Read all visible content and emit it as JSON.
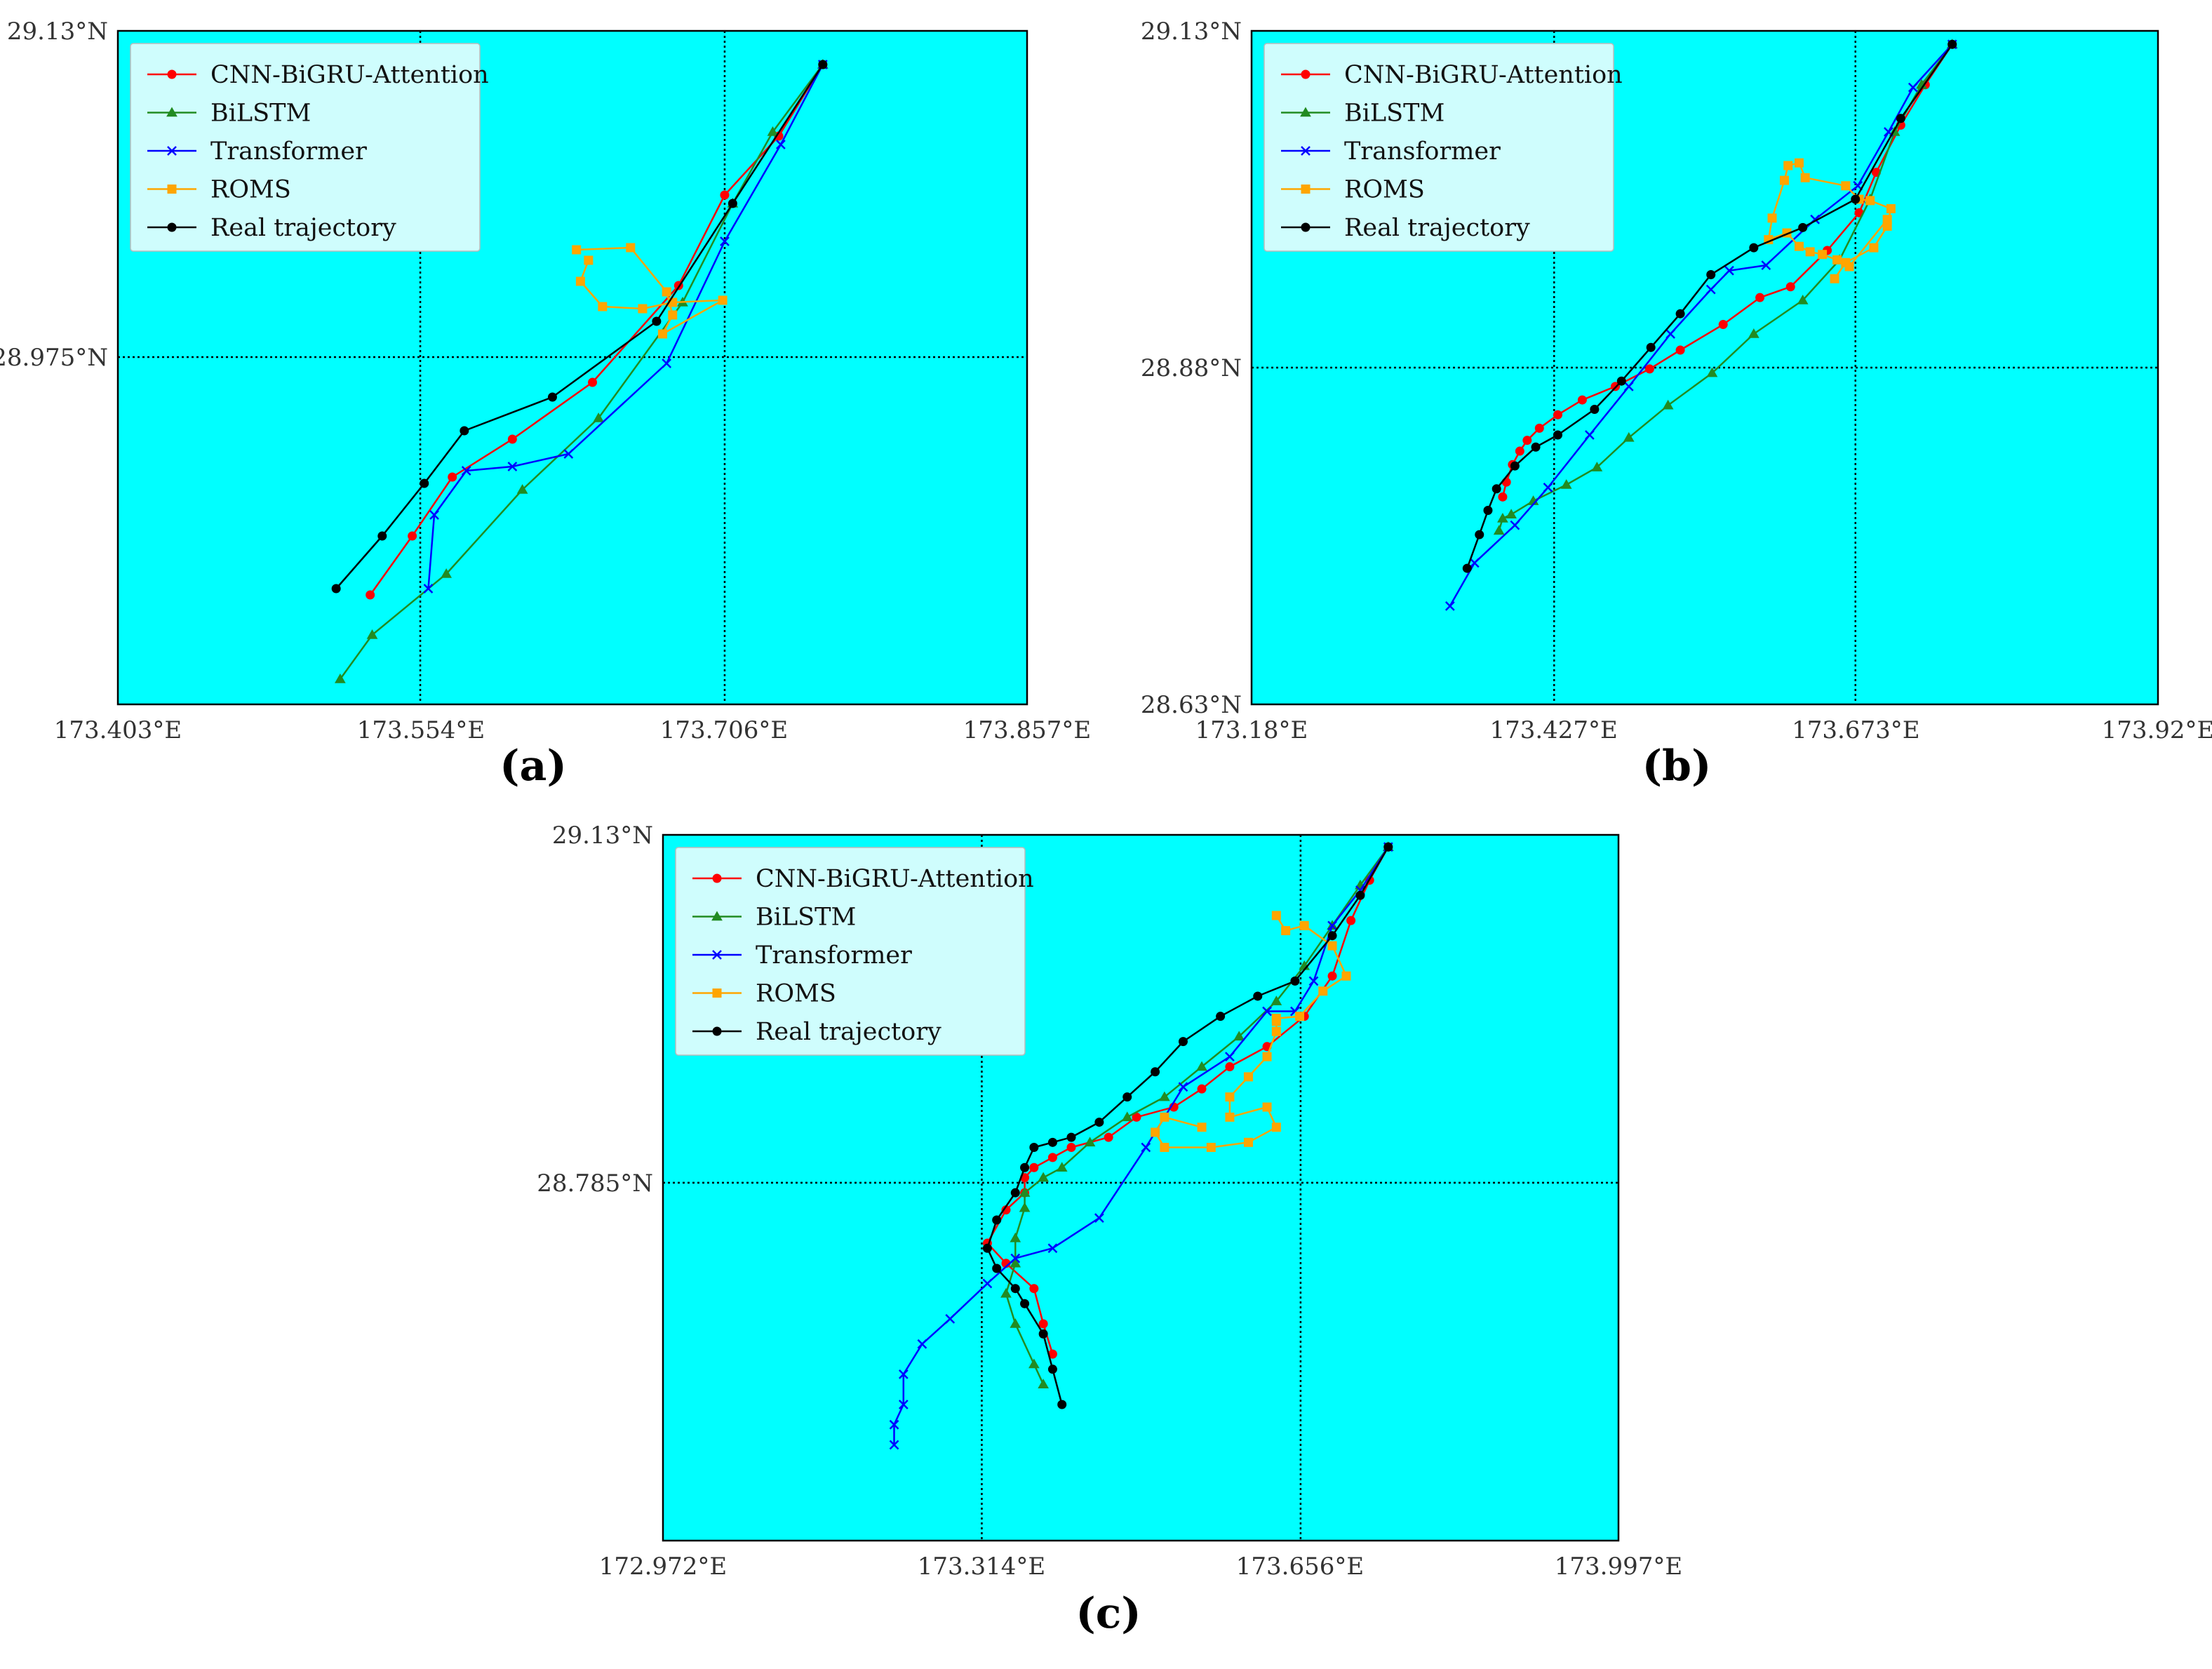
{
  "colors": {
    "CNN-BiGRU-Attention": "#ff0000",
    "BiLSTM": "#228b22",
    "Transformer": "#0000ff",
    "ROMS": "#ffa500",
    "Real trajectory": "#000000",
    "plot_bg": "#00ffff",
    "legend_bg": "#cffdfd"
  },
  "chart_data": [
    {
      "type": "line",
      "panel_label": "(a)",
      "legend": [
        "CNN-BiGRU-Attention",
        "BiLSTM",
        "Transformer",
        "ROMS",
        "Real trajectory"
      ],
      "legend_position": "top-left",
      "xlim": [
        173.403,
        173.857
      ],
      "ylim": [
        28.81,
        29.13
      ],
      "xticks": [
        "173.403°E",
        "173.554°E",
        "173.706°E",
        "173.857°E"
      ],
      "yticks": [
        "29.13°N",
        "28.975°N"
      ],
      "grid_x": [
        173.554,
        173.706
      ],
      "grid_y": [
        28.975
      ],
      "series": [
        {
          "name": "CNN-BiGRU-Attention",
          "marker": "circle",
          "x": [
            173.755,
            173.733,
            173.706,
            173.683,
            173.64,
            173.6,
            173.57,
            173.55,
            173.529
          ],
          "y": [
            29.114,
            29.08,
            29.052,
            29.009,
            28.963,
            28.936,
            28.918,
            28.89,
            28.862
          ]
        },
        {
          "name": "BiLSTM",
          "marker": "triangle",
          "x": [
            173.755,
            173.73,
            173.71,
            173.685,
            173.643,
            173.605,
            173.567,
            173.53,
            173.514
          ],
          "y": [
            29.114,
            29.082,
            29.048,
            29.001,
            28.946,
            28.912,
            28.872,
            28.843,
            28.822
          ]
        },
        {
          "name": "Transformer",
          "marker": "x",
          "x": [
            173.755,
            173.734,
            173.706,
            173.677,
            173.628,
            173.6,
            173.577,
            173.561,
            173.558
          ],
          "y": [
            29.114,
            29.076,
            29.03,
            28.972,
            28.929,
            28.923,
            28.921,
            28.9,
            28.865
          ]
        },
        {
          "name": "ROMS",
          "marker": "square",
          "x": [
            173.632,
            173.659,
            173.677,
            173.68,
            173.675,
            173.705,
            173.68,
            173.665,
            173.645,
            173.634,
            173.638
          ],
          "y": [
            29.026,
            29.027,
            29.006,
            28.995,
            28.986,
            29.002,
            29.001,
            28.998,
            28.999,
            29.011,
            29.021
          ]
        },
        {
          "name": "Real trajectory",
          "marker": "circle",
          "x": [
            173.755,
            173.71,
            173.672,
            173.62,
            173.576,
            173.556,
            173.535,
            173.512
          ],
          "y": [
            29.114,
            29.048,
            28.992,
            28.956,
            28.94,
            28.915,
            28.89,
            28.865
          ]
        }
      ]
    },
    {
      "type": "line",
      "panel_label": "(b)",
      "legend": [
        "CNN-BiGRU-Attention",
        "BiLSTM",
        "Transformer",
        "ROMS",
        "Real trajectory"
      ],
      "legend_position": "top-left",
      "xlim": [
        173.18,
        173.92
      ],
      "ylim": [
        28.63,
        29.13
      ],
      "xticks": [
        "173.18°E",
        "173.427°E",
        "173.673°E",
        "173.92°E"
      ],
      "yticks": [
        "29.13°N",
        "28.88°N",
        "28.63°N"
      ],
      "grid_x": [
        173.427,
        173.673
      ],
      "grid_y": [
        28.88
      ],
      "series": [
        {
          "name": "CNN-BiGRU-Attention",
          "marker": "circle",
          "x": [
            173.752,
            173.73,
            173.71,
            173.69,
            173.676,
            173.65,
            173.62,
            173.595,
            173.565,
            173.53,
            173.505,
            173.477,
            173.45,
            173.43,
            173.415,
            173.405,
            173.399,
            173.393,
            173.388,
            173.385
          ],
          "y": [
            29.12,
            29.09,
            29.06,
            29.025,
            28.995,
            28.967,
            28.94,
            28.932,
            28.912,
            28.893,
            28.879,
            28.866,
            28.856,
            28.845,
            28.835,
            28.826,
            28.818,
            28.808,
            28.795,
            28.784
          ]
        },
        {
          "name": "BiLSTM",
          "marker": "triangle",
          "x": [
            173.752,
            173.727,
            173.705,
            173.685,
            173.66,
            173.63,
            173.59,
            173.556,
            173.52,
            173.488,
            173.462,
            173.437,
            173.41,
            173.392,
            173.385,
            173.382
          ],
          "y": [
            29.12,
            29.09,
            29.055,
            29.005,
            28.96,
            28.93,
            28.905,
            28.876,
            28.852,
            28.828,
            28.806,
            28.793,
            28.781,
            28.771,
            28.768,
            28.759
          ]
        },
        {
          "name": "Transformer",
          "marker": "x",
          "x": [
            173.752,
            173.72,
            173.7,
            173.675,
            173.64,
            173.6,
            173.57,
            173.555,
            173.522,
            173.488,
            173.456,
            173.422,
            173.395,
            173.362,
            173.342
          ],
          "y": [
            29.12,
            29.088,
            29.055,
            29.015,
            28.99,
            28.956,
            28.952,
            28.938,
            28.905,
            28.866,
            28.83,
            28.791,
            28.763,
            28.735,
            28.703
          ]
        },
        {
          "name": "ROMS",
          "marker": "square",
          "x": [
            173.656,
            173.665,
            173.688,
            173.699,
            173.702,
            173.685,
            173.676,
            173.665,
            173.632,
            173.627,
            173.618,
            173.615,
            173.605,
            173.602,
            173.617,
            173.627,
            173.636,
            173.646,
            173.658,
            173.668,
            173.699
          ],
          "y": [
            28.946,
            28.958,
            28.969,
            28.985,
            28.998,
            29.004,
            29.005,
            29.015,
            29.021,
            29.032,
            29.03,
            29.019,
            28.991,
            28.975,
            28.98,
            28.97,
            28.966,
            28.964,
            28.96,
            28.955,
            28.99
          ]
        },
        {
          "name": "Real trajectory",
          "marker": "circle",
          "x": [
            173.752,
            173.71,
            173.673,
            173.63,
            173.59,
            173.555,
            173.53,
            173.506,
            173.482,
            173.46,
            173.43,
            173.412,
            173.395,
            173.38,
            173.373,
            173.366,
            173.356
          ],
          "y": [
            29.12,
            29.065,
            29.005,
            28.984,
            28.969,
            28.949,
            28.92,
            28.895,
            28.87,
            28.849,
            28.83,
            28.821,
            28.807,
            28.79,
            28.774,
            28.756,
            28.731
          ]
        }
      ]
    },
    {
      "type": "line",
      "panel_label": "(c)",
      "legend": [
        "CNN-BiGRU-Attention",
        "BiLSTM",
        "Transformer",
        "ROMS",
        "Real trajectory"
      ],
      "legend_position": "top-left",
      "xlim": [
        172.972,
        173.997
      ],
      "ylim": [
        28.43,
        29.13
      ],
      "xticks": [
        "172.972°E",
        "173.314°E",
        "173.656°E",
        "173.997°E"
      ],
      "yticks": [
        "29.13°N",
        "28.785°N"
      ],
      "grid_x": [
        173.314,
        173.656
      ],
      "grid_y": [
        28.785
      ],
      "series": [
        {
          "name": "CNN-BiGRU-Attention",
          "marker": "circle",
          "x": [
            173.75,
            173.73,
            173.71,
            173.69,
            173.66,
            173.62,
            173.58,
            173.55,
            173.52,
            173.48,
            173.45,
            173.41,
            173.39,
            173.37,
            173.36,
            173.36,
            173.34,
            173.32,
            173.34,
            173.37,
            173.38,
            173.39
          ],
          "y": [
            29.118,
            29.085,
            29.045,
            28.99,
            28.95,
            28.92,
            28.9,
            28.878,
            28.86,
            28.85,
            28.83,
            28.82,
            28.81,
            28.8,
            28.79,
            28.775,
            28.758,
            28.725,
            28.705,
            28.68,
            28.645,
            28.615
          ]
        },
        {
          "name": "BiLSTM",
          "marker": "triangle",
          "x": [
            173.75,
            173.72,
            173.69,
            173.66,
            173.63,
            173.59,
            173.55,
            173.51,
            173.47,
            173.43,
            173.4,
            173.38,
            173.36,
            173.36,
            173.35,
            173.35,
            173.34,
            173.35,
            173.37,
            173.38
          ],
          "y": [
            29.118,
            29.08,
            29.04,
            29.0,
            28.965,
            28.93,
            28.9,
            28.87,
            28.85,
            28.825,
            28.8,
            28.79,
            28.775,
            28.76,
            28.73,
            28.705,
            28.675,
            28.645,
            28.605,
            28.585
          ]
        },
        {
          "name": "Transformer",
          "marker": "x",
          "x": [
            173.75,
            173.72,
            173.69,
            173.67,
            173.65,
            173.62,
            173.58,
            173.53,
            173.49,
            173.44,
            173.39,
            173.35,
            173.32,
            173.28,
            173.25,
            173.23,
            173.23,
            173.22,
            173.22
          ],
          "y": [
            29.118,
            29.075,
            29.04,
            28.985,
            28.955,
            28.955,
            28.91,
            28.88,
            28.82,
            28.75,
            28.72,
            28.71,
            28.685,
            28.65,
            28.625,
            28.595,
            28.565,
            28.545,
            28.525
          ]
        },
        {
          "name": "ROMS",
          "marker": "square",
          "x": [
            173.63,
            173.64,
            173.66,
            173.69,
            173.705,
            173.68,
            173.655,
            173.63,
            173.63,
            173.63,
            173.62,
            173.6,
            173.58,
            173.58,
            173.62,
            173.63,
            173.6,
            173.56,
            173.51,
            173.5,
            173.51,
            173.55
          ],
          "y": [
            29.05,
            29.035,
            29.04,
            29.02,
            28.99,
            28.975,
            28.95,
            28.948,
            28.945,
            28.935,
            28.91,
            28.89,
            28.87,
            28.85,
            28.86,
            28.84,
            28.825,
            28.82,
            28.82,
            28.835,
            28.85,
            28.84
          ]
        },
        {
          "name": "Real trajectory",
          "marker": "circle",
          "x": [
            173.75,
            173.72,
            173.69,
            173.65,
            173.61,
            173.57,
            173.53,
            173.5,
            173.47,
            173.44,
            173.41,
            173.39,
            173.37,
            173.36,
            173.35,
            173.33,
            173.32,
            173.33,
            173.35,
            173.36,
            173.38,
            173.39,
            173.4
          ],
          "y": [
            29.118,
            29.07,
            29.03,
            28.985,
            28.97,
            28.95,
            28.925,
            28.895,
            28.87,
            28.845,
            28.83,
            28.825,
            28.82,
            28.8,
            28.775,
            28.748,
            28.72,
            28.7,
            28.68,
            28.665,
            28.635,
            28.6,
            28.565
          ]
        }
      ]
    }
  ]
}
